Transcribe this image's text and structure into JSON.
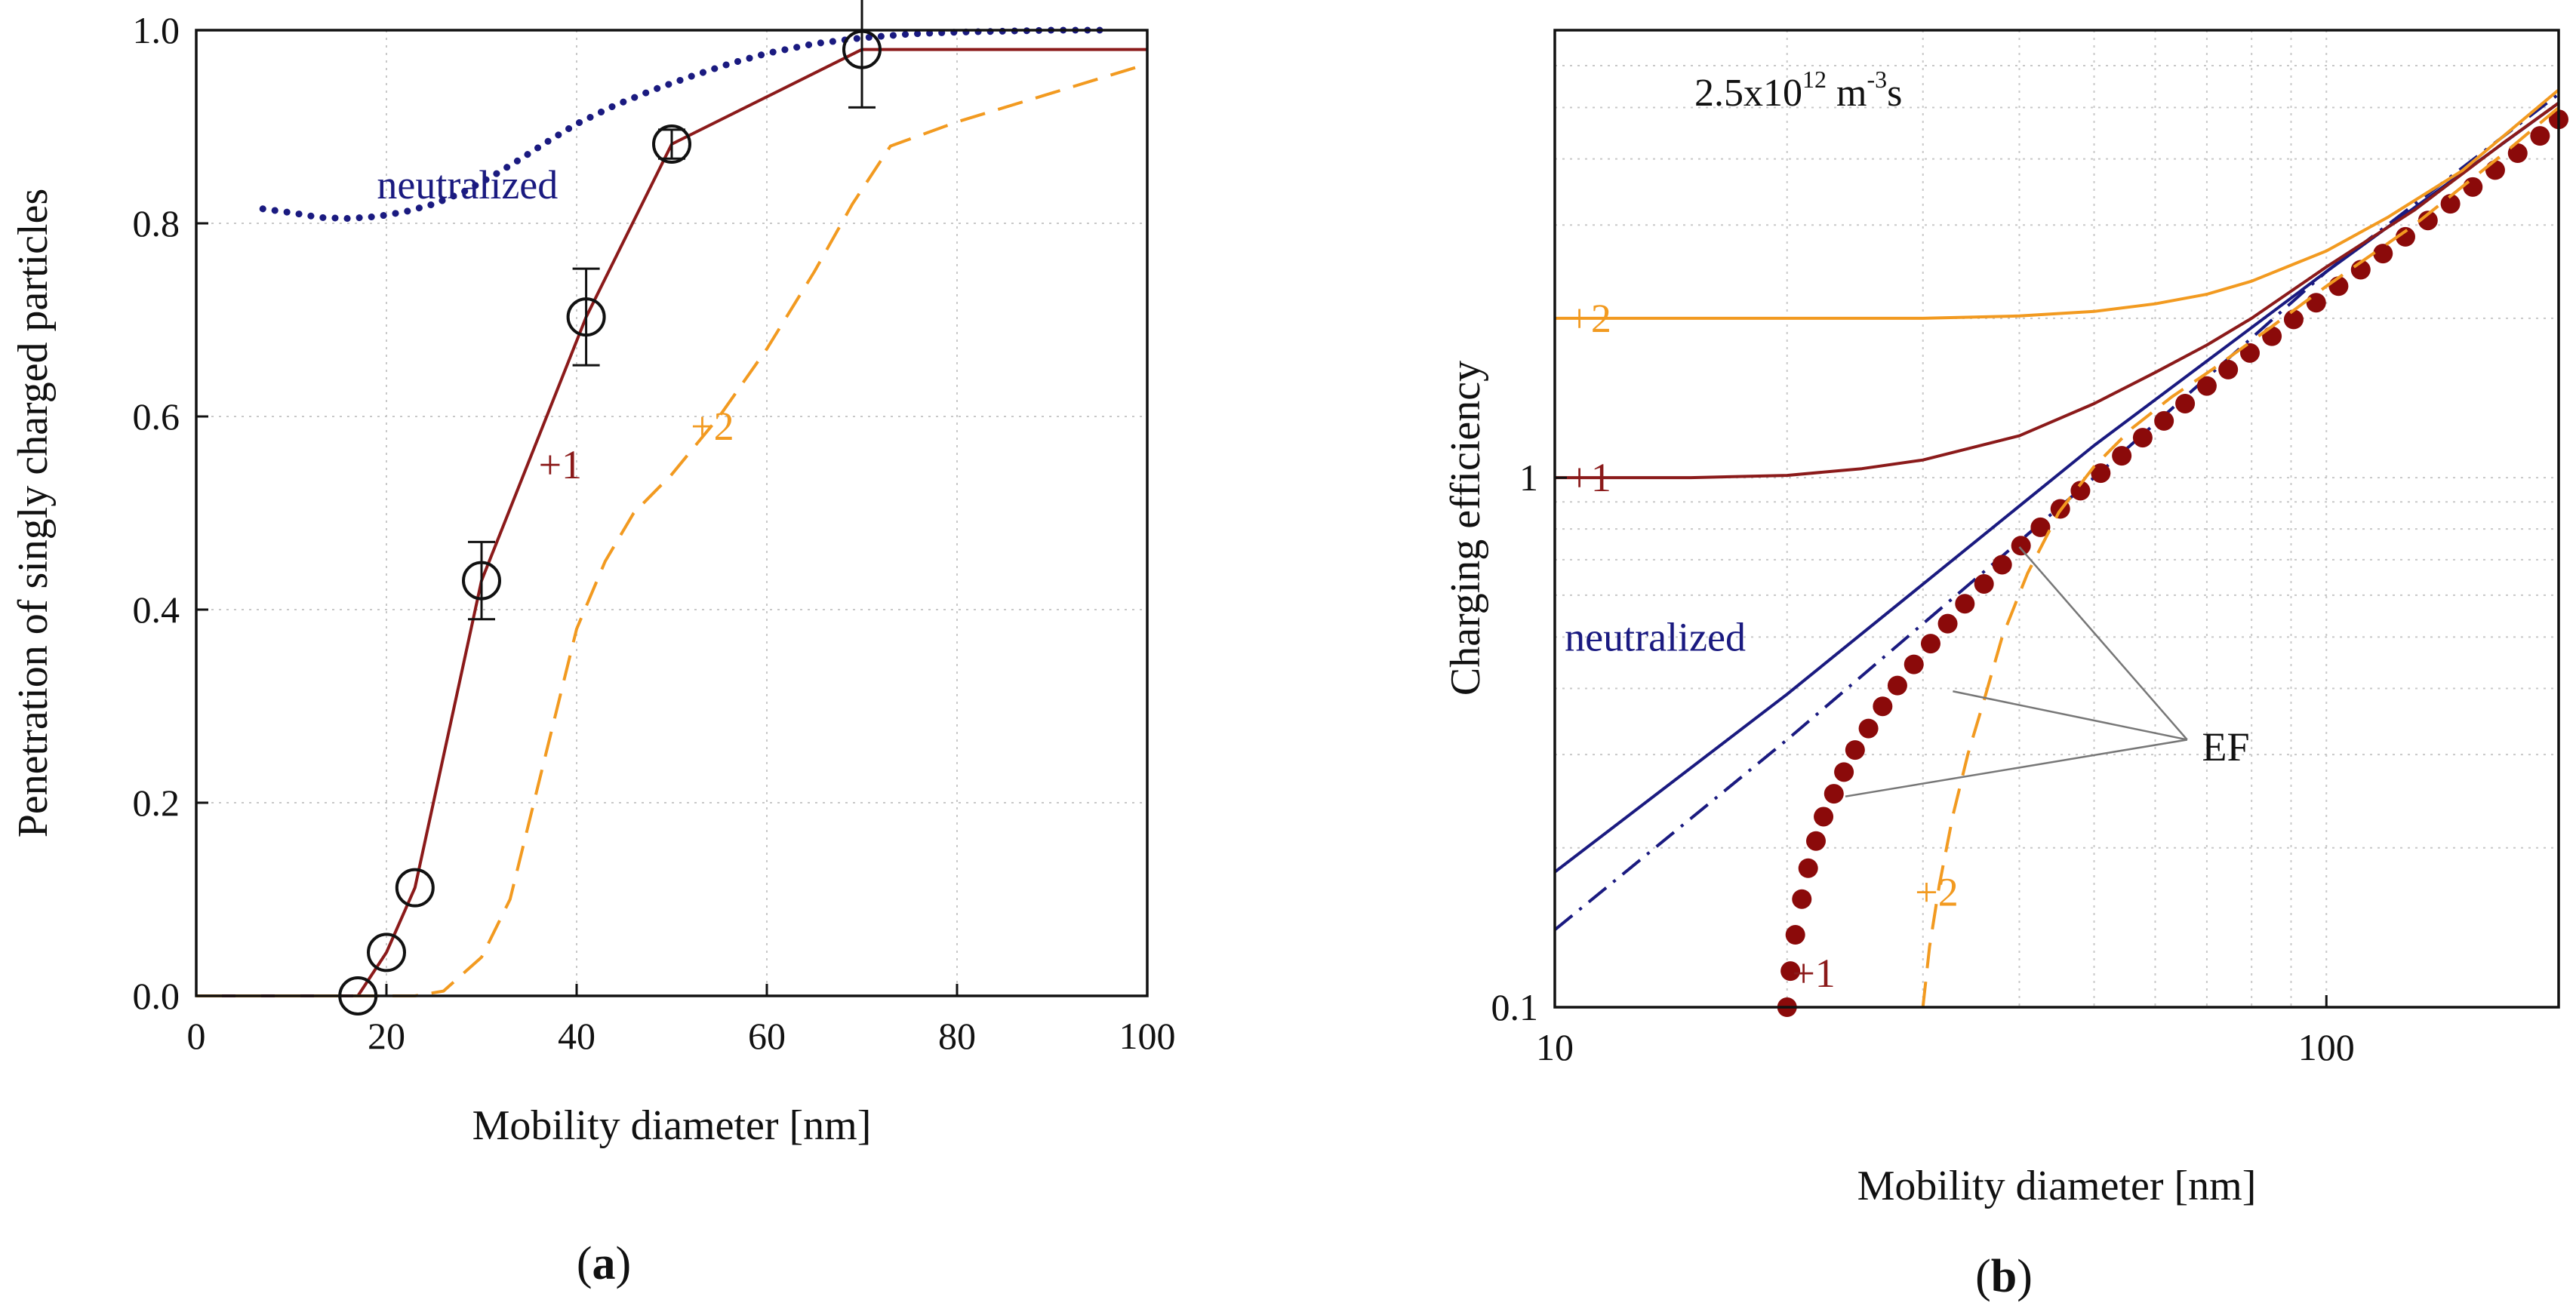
{
  "colors": {
    "neutralized": "#1a1a80",
    "plus1": "#8b1a1a",
    "plus2": "#f29a20",
    "marker": "#8b0a0a",
    "ef_line": "#777777"
  },
  "chart_data": [
    {
      "panel": "(a)",
      "panel_prefix": "(",
      "panel_letter": "a",
      "panel_suffix": ")",
      "type": "line",
      "title": "",
      "xlabel": "Mobility diameter [nm]",
      "ylabel": "Penetration of singly charged particles",
      "xlim": [
        0,
        100
      ],
      "ylim": [
        0,
        1.0
      ],
      "xticks": [
        {
          "value": 0,
          "label": "0"
        },
        {
          "value": 20,
          "label": "20"
        },
        {
          "value": 40,
          "label": "40"
        },
        {
          "value": 60,
          "label": "60"
        },
        {
          "value": 80,
          "label": "80"
        },
        {
          "value": 100,
          "label": "100"
        }
      ],
      "yticks": [
        {
          "value": 0,
          "label": "0.0"
        },
        {
          "value": 0.2,
          "label": "0.2"
        },
        {
          "value": 0.4,
          "label": "0.4"
        },
        {
          "value": 0.6,
          "label": "0.6"
        },
        {
          "value": 0.8,
          "label": "0.8"
        },
        {
          "value": 1.0,
          "label": "1.0"
        }
      ],
      "grid": true,
      "series": [
        {
          "name": "neutralized",
          "label": "neutralized",
          "style": "dotted",
          "color_key": "neutralized",
          "x": [
            7,
            10,
            13,
            16,
            19,
            22,
            25,
            28,
            31,
            34,
            37,
            40,
            44,
            48,
            52,
            56,
            60,
            65,
            70,
            75,
            80,
            85,
            90,
            96
          ],
          "y": [
            0.815,
            0.811,
            0.806,
            0.805,
            0.807,
            0.812,
            0.82,
            0.832,
            0.848,
            0.866,
            0.885,
            0.903,
            0.922,
            0.938,
            0.952,
            0.965,
            0.976,
            0.986,
            0.992,
            0.996,
            0.998,
            0.999,
            1.0,
            1.0
          ]
        },
        {
          "name": "+1",
          "label": "+1",
          "style": "solid",
          "color_key": "plus1",
          "x": [
            0,
            17,
            20,
            23,
            30,
            41,
            50,
            70,
            100
          ],
          "y": [
            0,
            0,
            0.045,
            0.112,
            0.43,
            0.703,
            0.882,
            0.98,
            0.98
          ]
        },
        {
          "name": "+2",
          "label": "+2",
          "style": "dashed",
          "color_key": "plus2",
          "x": [
            0,
            23,
            26,
            30,
            33,
            36,
            40,
            43,
            46,
            50,
            55,
            60,
            65,
            69,
            73,
            80,
            90,
            100
          ],
          "y": [
            0,
            0,
            0.005,
            0.04,
            0.1,
            0.22,
            0.38,
            0.45,
            0.5,
            0.54,
            0.6,
            0.67,
            0.75,
            0.82,
            0.88,
            0.905,
            0.935,
            0.965
          ]
        },
        {
          "name": "measured",
          "style": "markers",
          "marker": "open-circle",
          "color": "#111111",
          "x": [
            17,
            20,
            23,
            30,
            41,
            50,
            70
          ],
          "y": [
            0.0,
            0.045,
            0.112,
            0.43,
            0.703,
            0.882,
            0.98
          ],
          "yerr": [
            0.0,
            0.0,
            0.0,
            0.04,
            0.05,
            0.015,
            0.06
          ]
        }
      ],
      "annotations": [
        {
          "text": "neutralized",
          "color_key": "neutralized",
          "x": 19,
          "y": 0.84
        },
        {
          "text": "+1",
          "color_key": "plus1",
          "x": 36,
          "y": 0.55
        },
        {
          "text": "+2",
          "color_key": "plus2",
          "x": 52,
          "y": 0.59
        }
      ]
    },
    {
      "panel": "(b)",
      "panel_prefix": "(",
      "panel_letter": "b",
      "panel_suffix": ")",
      "type": "line",
      "title": "2.5x10¹² m⁻³s",
      "title_base": "2.5x10",
      "title_exp": "12",
      "title_unit": " m",
      "title_unit_exp": "-3",
      "title_tail": "s",
      "xlabel": "Mobility diameter [nm]",
      "ylabel": "Charging efficiency",
      "xscale": "log",
      "yscale": "log",
      "xlim": [
        10,
        200
      ],
      "ylim": [
        0.1,
        7
      ],
      "xticks": [
        {
          "value": 10,
          "label": "10"
        },
        {
          "value": 100,
          "label": "100"
        }
      ],
      "yticks": [
        {
          "value": 0.1,
          "label": "0.1"
        },
        {
          "value": 1,
          "label": "1"
        }
      ],
      "grid": true,
      "series": [
        {
          "name": "neutralized",
          "label": "neutralized",
          "style": "solid",
          "color_key": "neutralized",
          "x": [
            10,
            20,
            50,
            100,
            200
          ],
          "y": [
            0.18,
            0.39,
            1.15,
            2.45,
            5.1
          ]
        },
        {
          "name": "neutralized-EF",
          "style": "dashdot",
          "color_key": "neutralized",
          "x": [
            10,
            20,
            50,
            100,
            200
          ],
          "y": [
            0.14,
            0.32,
            1.0,
            2.45,
            5.3
          ]
        },
        {
          "name": "+1",
          "label": "+1",
          "style": "solid",
          "color_key": "plus1",
          "x": [
            10,
            15,
            20,
            25,
            30,
            40,
            50,
            60,
            70,
            80,
            100,
            130,
            170,
            200
          ],
          "y": [
            1.0,
            1.0,
            1.01,
            1.04,
            1.08,
            1.2,
            1.38,
            1.58,
            1.78,
            2.0,
            2.5,
            3.2,
            4.3,
            5.1
          ]
        },
        {
          "name": "+1-EF",
          "style": "dotted-markers",
          "color_key": "marker",
          "x": [
            20,
            20.2,
            20.5,
            20.9,
            21.3,
            21.8,
            22.3,
            23,
            23.7,
            24.5,
            25.5,
            26.6,
            27.8,
            29.2,
            30.7,
            32.3,
            34,
            36,
            38,
            40.2,
            42.6,
            45.2,
            48,
            51,
            54.3,
            57.8,
            61.6,
            65.6,
            70,
            74.6,
            79.6,
            85,
            90.7,
            97,
            103.7,
            110.8,
            118.4,
            126.6,
            135.4,
            144.8,
            154.8,
            165.5,
            177,
            189.2,
            200
          ],
          "y": [
            0.1,
            0.117,
            0.137,
            0.16,
            0.183,
            0.206,
            0.229,
            0.253,
            0.278,
            0.306,
            0.336,
            0.37,
            0.405,
            0.444,
            0.486,
            0.53,
            0.578,
            0.63,
            0.685,
            0.744,
            0.806,
            0.873,
            0.945,
            1.02,
            1.1,
            1.19,
            1.28,
            1.38,
            1.49,
            1.6,
            1.72,
            1.85,
            1.99,
            2.14,
            2.3,
            2.47,
            2.65,
            2.85,
            3.06,
            3.29,
            3.54,
            3.81,
            4.1,
            4.42,
            4.75
          ]
        },
        {
          "name": "+2",
          "label": "+2",
          "style": "solid",
          "color_key": "plus2",
          "x": [
            10,
            20,
            30,
            40,
            50,
            60,
            70,
            80,
            100,
            120,
            150,
            200
          ],
          "y": [
            2.0,
            2.0,
            2.0,
            2.02,
            2.06,
            2.13,
            2.22,
            2.35,
            2.68,
            3.1,
            3.8,
            5.4
          ]
        },
        {
          "name": "+2-EF",
          "style": "dashed",
          "color_key": "plus2",
          "x": [
            30,
            30.6,
            31.5,
            32.8,
            34.3,
            36,
            38,
            41,
            45,
            50,
            56,
            63,
            72,
            85,
            100,
            130,
            170,
            200
          ],
          "y": [
            0.1,
            0.13,
            0.17,
            0.23,
            0.3,
            0.38,
            0.5,
            0.66,
            0.86,
            1.05,
            1.24,
            1.42,
            1.62,
            1.93,
            2.3,
            3.0,
            4.1,
            5.0
          ]
        }
      ],
      "annotations": [
        {
          "text": "+2",
          "color_key": "plus2",
          "x": 10.4,
          "y": 2.0
        },
        {
          "text": "+1",
          "color_key": "plus1",
          "x": 10.4,
          "y": 1.0
        },
        {
          "text": "neutralized",
          "color_key": "neutralized",
          "x": 10.3,
          "y": 0.5
        },
        {
          "text": "+2",
          "color_key": "plus2",
          "x": 29.3,
          "y": 0.165
        },
        {
          "text": "+1",
          "color_key": "plus1",
          "x": 20.3,
          "y": 0.116
        },
        {
          "text": "EF",
          "color": "#111111",
          "x": 69,
          "y": 0.31
        }
      ],
      "ef_callout": {
        "label": "EF",
        "from": {
          "x": 66,
          "y": 0.32
        },
        "targets": [
          {
            "x": 40,
            "y": 0.74
          },
          {
            "x": 32.8,
            "y": 0.395
          },
          {
            "x": 23.8,
            "y": 0.25
          }
        ]
      }
    }
  ]
}
